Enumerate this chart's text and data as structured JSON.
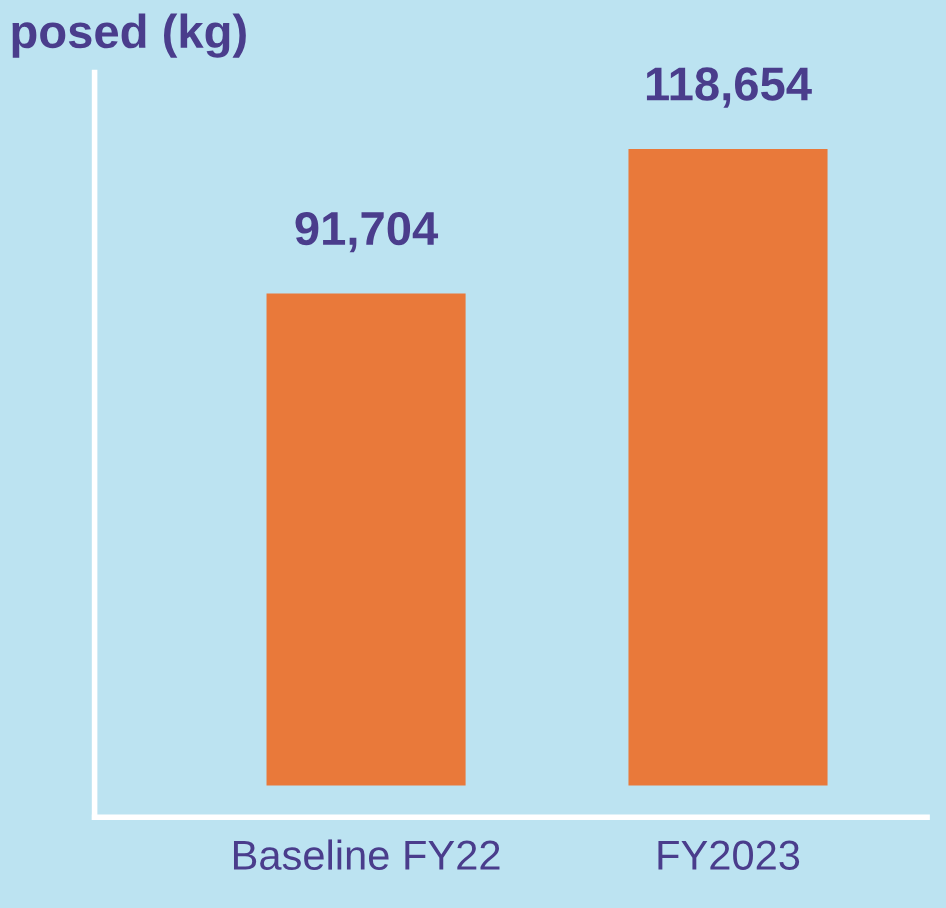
{
  "chart_data": {
    "type": "bar",
    "title": "posed (kg)",
    "categories": [
      "Baseline FY22",
      "FY2023"
    ],
    "values": [
      91704,
      118654
    ],
    "color": "#e9793a",
    "data_labels": true,
    "value_labels": [
      "91,704",
      "118,654"
    ],
    "grid": false
  }
}
